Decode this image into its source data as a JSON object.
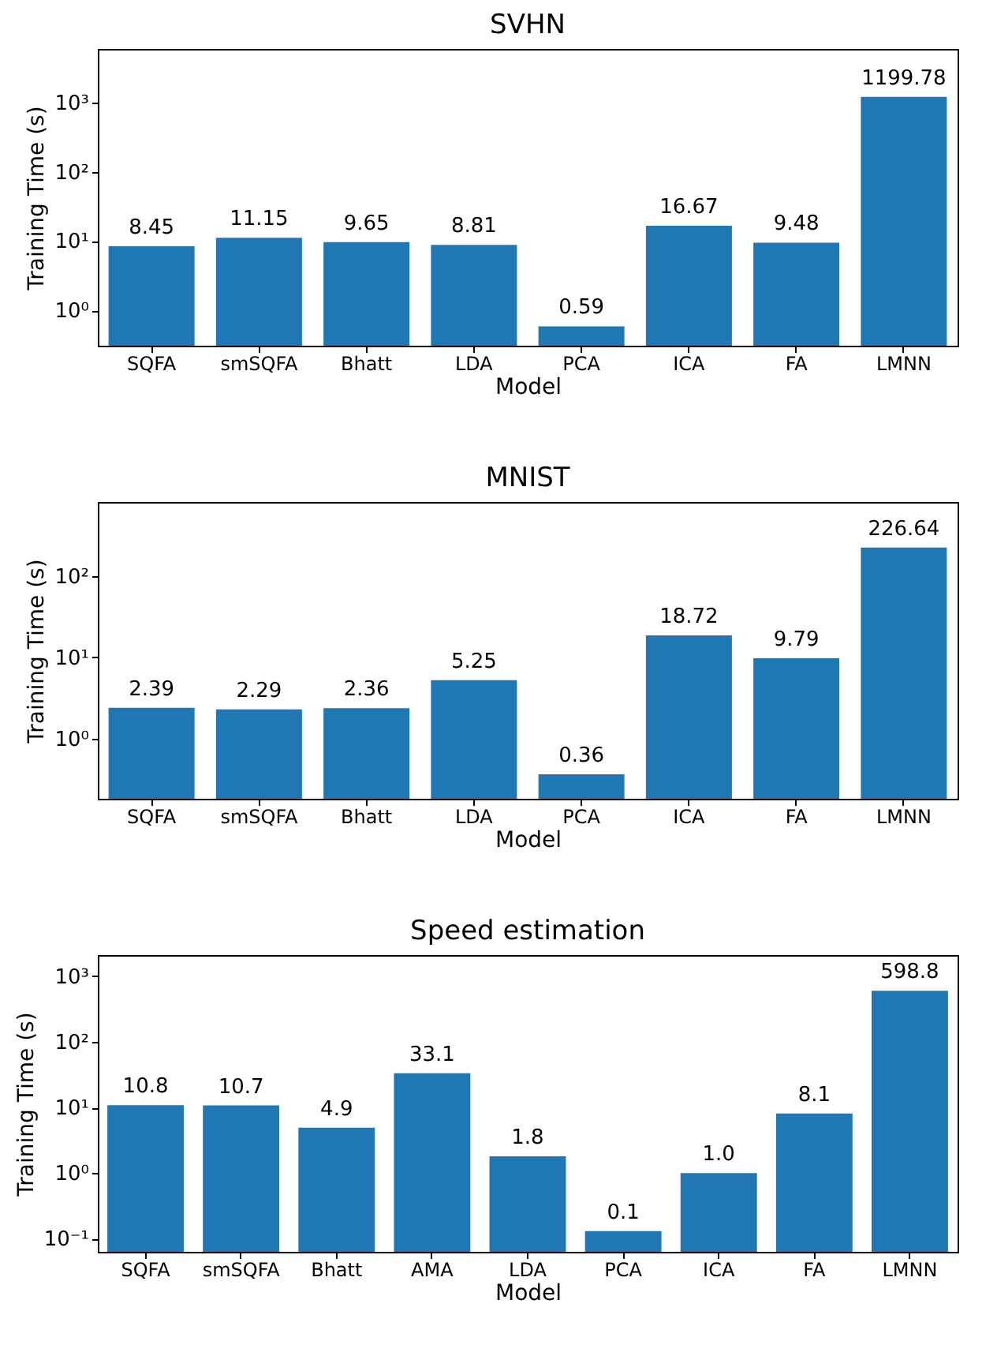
{
  "chart_data": [
    {
      "type": "bar",
      "title": "SVHN",
      "xlabel": "Model",
      "ylabel": "Training Time (s)",
      "categories": [
        "SQFA",
        "smSQFA",
        "Bhatt",
        "LDA",
        "PCA",
        "ICA",
        "FA",
        "LMNN"
      ],
      "values": [
        8.45,
        11.15,
        9.65,
        8.81,
        0.59,
        16.67,
        9.48,
        1199.78
      ],
      "color": "#1f77b4",
      "data_labels": true,
      "log": "y",
      "ylim": [
        0.31,
        5900
      ],
      "yticks": [
        {
          "value": 1,
          "label": "10⁰"
        },
        {
          "value": 10,
          "label": "10¹"
        },
        {
          "value": 100,
          "label": "10²"
        },
        {
          "value": 1000,
          "label": "10³"
        }
      ]
    },
    {
      "type": "bar",
      "title": "MNIST",
      "xlabel": "Model",
      "ylabel": "Training Time (s)",
      "categories": [
        "SQFA",
        "smSQFA",
        "Bhatt",
        "LDA",
        "PCA",
        "ICA",
        "FA",
        "LMNN"
      ],
      "values": [
        2.39,
        2.29,
        2.36,
        5.25,
        0.36,
        18.72,
        9.79,
        226.64
      ],
      "color": "#1f77b4",
      "data_labels": true,
      "log": "y",
      "ylim": [
        0.18,
        830
      ],
      "yticks": [
        {
          "value": 1,
          "label": "10⁰"
        },
        {
          "value": 10,
          "label": "10¹"
        },
        {
          "value": 100,
          "label": "10²"
        }
      ]
    },
    {
      "type": "bar",
      "title": "Speed estimation",
      "xlabel": "Model",
      "ylabel": "Training Time (s)",
      "categories": [
        "SQFA",
        "smSQFA",
        "Bhatt",
        "AMA",
        "LDA",
        "PCA",
        "ICA",
        "FA",
        "LMNN"
      ],
      "values": [
        10.8,
        10.7,
        4.9,
        33.1,
        1.8,
        0.13,
        1.0,
        8.1,
        598.8
      ],
      "value_labels": [
        "10.8",
        "10.7",
        "4.9",
        "33.1",
        "1.8",
        "0.1",
        "1.0",
        "8.1",
        "598.8"
      ],
      "color": "#1f77b4",
      "log": "y",
      "ylim": [
        0.063,
        2100
      ],
      "yticks": [
        {
          "value": 0.1,
          "label": "10⁻¹"
        },
        {
          "value": 1,
          "label": "10⁰"
        },
        {
          "value": 10,
          "label": "10¹"
        },
        {
          "value": 100,
          "label": "10²"
        },
        {
          "value": 1000,
          "label": "10³"
        }
      ]
    }
  ]
}
